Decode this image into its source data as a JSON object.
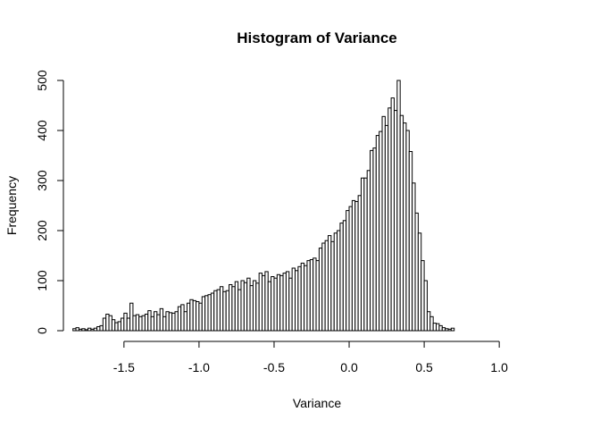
{
  "chart_data": {
    "type": "bar",
    "title": "Histogram of Variance",
    "xlabel": "Variance",
    "ylabel": "Frequency",
    "xlim": [
      -1.85,
      1.35
    ],
    "ylim": [
      0,
      500
    ],
    "bin_width": 0.02,
    "bin_start": -1.84,
    "x_ticks": [
      -1.5,
      -1.0,
      -0.5,
      0.0,
      0.5,
      1.0
    ],
    "x_tick_labels": [
      "-1.5",
      "-1.0",
      "-0.5",
      "0.0",
      "0.5",
      "1.0"
    ],
    "y_ticks": [
      0,
      100,
      200,
      300,
      400,
      500
    ],
    "y_tick_labels": [
      "0",
      "100",
      "200",
      "300",
      "400",
      "500"
    ],
    "values": [
      4,
      6,
      3,
      4,
      2,
      5,
      3,
      5,
      8,
      10,
      25,
      33,
      30,
      22,
      16,
      18,
      25,
      35,
      25,
      55,
      30,
      32,
      28,
      30,
      33,
      40,
      28,
      38,
      32,
      44,
      28,
      38,
      36,
      35,
      38,
      48,
      52,
      38,
      55,
      62,
      60,
      58,
      55,
      68,
      70,
      72,
      75,
      80,
      82,
      88,
      78,
      80,
      92,
      88,
      98,
      82,
      100,
      96,
      105,
      90,
      100,
      95,
      115,
      110,
      118,
      98,
      108,
      105,
      112,
      110,
      115,
      118,
      105,
      125,
      120,
      128,
      135,
      130,
      140,
      142,
      145,
      140,
      165,
      175,
      180,
      190,
      178,
      195,
      200,
      215,
      220,
      240,
      248,
      260,
      258,
      270,
      305,
      305,
      320,
      360,
      365,
      390,
      398,
      428,
      410,
      445,
      465,
      440,
      500,
      430,
      415,
      400,
      358,
      295,
      235,
      195,
      140,
      100,
      38,
      28,
      15,
      14,
      10,
      6,
      4,
      3,
      5
    ]
  }
}
